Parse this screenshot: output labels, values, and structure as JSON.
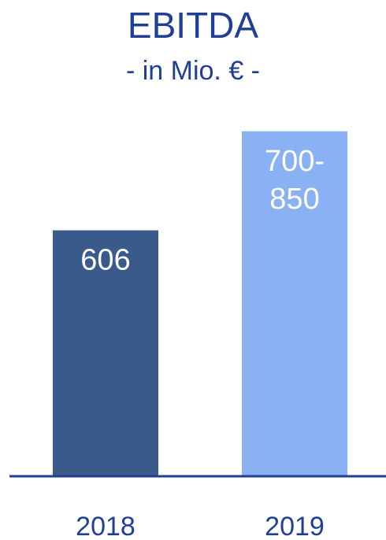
{
  "chart_data": {
    "type": "bar",
    "title": "EBITDA",
    "subtitle": "- in Mio. € -",
    "categories": [
      "2018",
      "2019"
    ],
    "values": [
      606,
      850
    ],
    "data_labels": [
      [
        "606"
      ],
      [
        "700-",
        "850"
      ]
    ],
    "xlabel": "",
    "ylabel": "",
    "ylim": [
      0,
      900
    ],
    "grid": false,
    "legend": "none",
    "colors": [
      "#3b5a8c",
      "#8ab1f4"
    ],
    "axis_color": "#1f3f96"
  }
}
